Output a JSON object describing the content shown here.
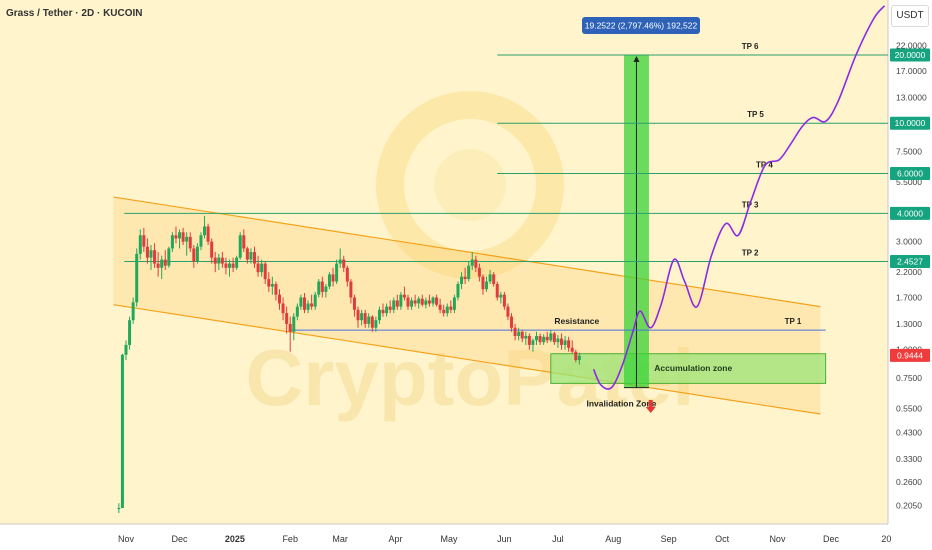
{
  "header": {
    "title": "Grass / Tether · 2D · KUCOIN",
    "currency": "USDT"
  },
  "chart_data": {
    "type": "candlestick",
    "scale": "log",
    "ylim": [
      0.17,
      35
    ],
    "y_ticks": [
      "22.0000",
      "17.0000",
      "13.0000",
      "7.5000",
      "5.5000",
      "3.0000",
      "2.2000",
      "1.7000",
      "1.3000",
      "1.0000",
      "0.7500",
      "0.5500",
      "0.4300",
      "0.3300",
      "0.2600",
      "0.2050"
    ],
    "x_ticks": [
      "Nov",
      "Dec",
      "2025",
      "Feb",
      "Mar",
      "Apr",
      "May",
      "Jun",
      "Jul",
      "Aug",
      "Sep",
      "Oct",
      "Nov",
      "Dec",
      "20"
    ],
    "x_months": [
      {
        "label": "Nov",
        "month": "2024-11"
      },
      {
        "label": "Dec",
        "month": "2024-12"
      },
      {
        "label": "2025",
        "month": "2025-01"
      },
      {
        "label": "Feb",
        "month": "2025-02"
      },
      {
        "label": "Mar",
        "month": "2025-03"
      },
      {
        "label": "Apr",
        "month": "2025-04"
      },
      {
        "label": "May",
        "month": "2025-05"
      },
      {
        "label": "Jun",
        "month": "2025-06"
      },
      {
        "label": "Jul",
        "month": "2025-07"
      },
      {
        "label": "Aug",
        "month": "2025-08"
      },
      {
        "label": "Sep",
        "month": "2025-09"
      },
      {
        "label": "Oct",
        "month": "2025-10"
      },
      {
        "label": "Nov",
        "month": "2025-11"
      },
      {
        "label": "Dec",
        "month": "2025-12"
      },
      {
        "label": "20",
        "month": "2026-01"
      }
    ],
    "price_label": "0.9444",
    "tp_levels": [
      {
        "name": "TP 6",
        "price": 20.0,
        "label": "20.0000"
      },
      {
        "name": "TP 5",
        "price": 10.0,
        "label": "10.0000"
      },
      {
        "name": "TP 4",
        "price": 6.0,
        "label": "6.0000"
      },
      {
        "name": "TP 3",
        "price": 4.0,
        "label": "4.0000"
      },
      {
        "name": "TP 2",
        "price": 2.4527,
        "label": "2.4527"
      },
      {
        "name": "TP 1",
        "price": 1.22,
        "label": ""
      }
    ],
    "annotations": {
      "measure": "19.2522 (2,797.46%) 192,522",
      "resistance": "Resistance",
      "accumulation": "Accumulation zone",
      "invalidation": "Invalidation Zone"
    },
    "watermark": "CryptoPatel",
    "projection": [
      {
        "date": "2025-07-21",
        "price": 0.82
      },
      {
        "date": "2025-07-25",
        "price": 0.7
      },
      {
        "date": "2025-07-31",
        "price": 0.68
      },
      {
        "date": "2025-08-06",
        "price": 0.85
      },
      {
        "date": "2025-08-12",
        "price": 1.2
      },
      {
        "date": "2025-08-16",
        "price": 1.48
      },
      {
        "date": "2025-08-22",
        "price": 1.25
      },
      {
        "date": "2025-08-28",
        "price": 1.6
      },
      {
        "date": "2025-09-04",
        "price": 2.5
      },
      {
        "date": "2025-09-10",
        "price": 2.0
      },
      {
        "date": "2025-09-17",
        "price": 1.55
      },
      {
        "date": "2025-09-25",
        "price": 2.6
      },
      {
        "date": "2025-10-03",
        "price": 3.6
      },
      {
        "date": "2025-10-10",
        "price": 3.2
      },
      {
        "date": "2025-10-17",
        "price": 4.5
      },
      {
        "date": "2025-10-25",
        "price": 6.5
      },
      {
        "date": "2025-11-02",
        "price": 6.9
      },
      {
        "date": "2025-11-08",
        "price": 8.0
      },
      {
        "date": "2025-11-15",
        "price": 9.7
      },
      {
        "date": "2025-11-21",
        "price": 10.6
      },
      {
        "date": "2025-11-28",
        "price": 10.2
      },
      {
        "date": "2025-12-05",
        "price": 12.5
      },
      {
        "date": "2025-12-15",
        "price": 20.0
      },
      {
        "date": "2025-12-25",
        "price": 29.0
      },
      {
        "date": "2025-12-31",
        "price": 33.0
      }
    ],
    "candles": [
      {
        "date": "2024-10-28",
        "o": 0.2,
        "h": 0.21,
        "l": 0.19,
        "c": 0.2
      },
      {
        "date": "2024-10-30",
        "o": 0.2,
        "h": 0.96,
        "l": 0.2,
        "c": 0.95
      },
      {
        "date": "2024-11-01",
        "o": 0.95,
        "h": 1.1,
        "l": 0.9,
        "c": 1.05
      },
      {
        "date": "2024-11-03",
        "o": 1.05,
        "h": 1.4,
        "l": 1.0,
        "c": 1.35
      },
      {
        "date": "2024-11-05",
        "o": 1.35,
        "h": 1.7,
        "l": 1.3,
        "c": 1.62
      },
      {
        "date": "2024-11-07",
        "o": 1.62,
        "h": 2.8,
        "l": 1.55,
        "c": 2.65
      },
      {
        "date": "2024-11-09",
        "o": 2.65,
        "h": 3.4,
        "l": 2.5,
        "c": 3.2
      },
      {
        "date": "2024-11-11",
        "o": 3.2,
        "h": 3.45,
        "l": 2.7,
        "c": 2.85
      },
      {
        "date": "2024-11-13",
        "o": 2.85,
        "h": 3.1,
        "l": 2.4,
        "c": 2.55
      },
      {
        "date": "2024-11-15",
        "o": 2.55,
        "h": 2.9,
        "l": 2.25,
        "c": 2.75
      },
      {
        "date": "2024-11-17",
        "o": 2.75,
        "h": 2.95,
        "l": 2.3,
        "c": 2.4
      },
      {
        "date": "2024-11-19",
        "o": 2.4,
        "h": 2.7,
        "l": 2.1,
        "c": 2.3
      },
      {
        "date": "2024-11-21",
        "o": 2.3,
        "h": 2.6,
        "l": 2.05,
        "c": 2.5
      },
      {
        "date": "2024-11-23",
        "o": 2.5,
        "h": 2.75,
        "l": 2.25,
        "c": 2.35
      },
      {
        "date": "2024-11-25",
        "o": 2.35,
        "h": 2.85,
        "l": 2.3,
        "c": 2.8
      },
      {
        "date": "2024-11-27",
        "o": 2.8,
        "h": 3.3,
        "l": 2.7,
        "c": 3.2
      },
      {
        "date": "2024-11-29",
        "o": 3.2,
        "h": 3.5,
        "l": 2.95,
        "c": 3.1
      },
      {
        "date": "2024-12-01",
        "o": 3.1,
        "h": 3.4,
        "l": 2.8,
        "c": 3.3
      },
      {
        "date": "2024-12-03",
        "o": 3.3,
        "h": 3.45,
        "l": 2.9,
        "c": 3.0
      },
      {
        "date": "2024-12-05",
        "o": 3.0,
        "h": 3.3,
        "l": 2.6,
        "c": 3.15
      },
      {
        "date": "2024-12-07",
        "o": 3.15,
        "h": 3.3,
        "l": 2.7,
        "c": 2.8
      },
      {
        "date": "2024-12-09",
        "o": 2.8,
        "h": 2.9,
        "l": 2.3,
        "c": 2.45
      },
      {
        "date": "2024-12-11",
        "o": 2.45,
        "h": 2.95,
        "l": 2.4,
        "c": 2.85
      },
      {
        "date": "2024-12-13",
        "o": 2.85,
        "h": 3.3,
        "l": 2.75,
        "c": 3.2
      },
      {
        "date": "2024-12-15",
        "o": 3.2,
        "h": 3.9,
        "l": 3.1,
        "c": 3.5
      },
      {
        "date": "2024-12-17",
        "o": 3.5,
        "h": 3.6,
        "l": 2.9,
        "c": 3.0
      },
      {
        "date": "2024-12-19",
        "o": 3.0,
        "h": 3.1,
        "l": 2.4,
        "c": 2.55
      },
      {
        "date": "2024-12-21",
        "o": 2.55,
        "h": 2.7,
        "l": 2.2,
        "c": 2.4
      },
      {
        "date": "2024-12-23",
        "o": 2.4,
        "h": 2.65,
        "l": 2.25,
        "c": 2.55
      },
      {
        "date": "2024-12-25",
        "o": 2.55,
        "h": 2.7,
        "l": 2.3,
        "c": 2.4
      },
      {
        "date": "2024-12-27",
        "o": 2.4,
        "h": 2.55,
        "l": 2.15,
        "c": 2.3
      },
      {
        "date": "2024-12-29",
        "o": 2.3,
        "h": 2.5,
        "l": 2.1,
        "c": 2.4
      },
      {
        "date": "2024-12-31",
        "o": 2.4,
        "h": 2.55,
        "l": 2.2,
        "c": 2.3
      },
      {
        "date": "2025-01-02",
        "o": 2.3,
        "h": 2.6,
        "l": 2.25,
        "c": 2.55
      },
      {
        "date": "2025-01-04",
        "o": 2.55,
        "h": 3.3,
        "l": 2.5,
        "c": 3.2
      },
      {
        "date": "2025-01-06",
        "o": 3.2,
        "h": 3.4,
        "l": 2.7,
        "c": 2.8
      },
      {
        "date": "2025-01-08",
        "o": 2.8,
        "h": 2.85,
        "l": 2.4,
        "c": 2.5
      },
      {
        "date": "2025-01-10",
        "o": 2.5,
        "h": 2.8,
        "l": 2.4,
        "c": 2.7
      },
      {
        "date": "2025-01-12",
        "o": 2.7,
        "h": 2.85,
        "l": 2.3,
        "c": 2.4
      },
      {
        "date": "2025-01-14",
        "o": 2.4,
        "h": 2.6,
        "l": 2.1,
        "c": 2.2
      },
      {
        "date": "2025-01-16",
        "o": 2.2,
        "h": 2.5,
        "l": 2.1,
        "c": 2.4
      },
      {
        "date": "2025-01-18",
        "o": 2.4,
        "h": 2.45,
        "l": 1.95,
        "c": 2.05
      },
      {
        "date": "2025-01-20",
        "o": 2.05,
        "h": 2.2,
        "l": 1.8,
        "c": 1.9
      },
      {
        "date": "2025-01-22",
        "o": 1.9,
        "h": 2.1,
        "l": 1.75,
        "c": 1.95
      },
      {
        "date": "2025-01-24",
        "o": 1.95,
        "h": 2.0,
        "l": 1.65,
        "c": 1.75
      },
      {
        "date": "2025-01-26",
        "o": 1.75,
        "h": 1.85,
        "l": 1.5,
        "c": 1.6
      },
      {
        "date": "2025-01-28",
        "o": 1.6,
        "h": 1.7,
        "l": 1.35,
        "c": 1.45
      },
      {
        "date": "2025-01-30",
        "o": 1.45,
        "h": 1.55,
        "l": 1.18,
        "c": 1.3
      },
      {
        "date": "2025-02-01",
        "o": 1.3,
        "h": 1.4,
        "l": 0.98,
        "c": 1.2
      },
      {
        "date": "2025-02-03",
        "o": 1.2,
        "h": 1.45,
        "l": 1.1,
        "c": 1.4
      },
      {
        "date": "2025-02-05",
        "o": 1.4,
        "h": 1.6,
        "l": 1.35,
        "c": 1.55
      },
      {
        "date": "2025-02-07",
        "o": 1.55,
        "h": 1.75,
        "l": 1.5,
        "c": 1.7
      },
      {
        "date": "2025-02-09",
        "o": 1.7,
        "h": 1.78,
        "l": 1.45,
        "c": 1.5
      },
      {
        "date": "2025-02-11",
        "o": 1.5,
        "h": 1.65,
        "l": 1.45,
        "c": 1.6
      },
      {
        "date": "2025-02-13",
        "o": 1.6,
        "h": 1.75,
        "l": 1.5,
        "c": 1.55
      },
      {
        "date": "2025-02-15",
        "o": 1.55,
        "h": 1.8,
        "l": 1.5,
        "c": 1.75
      },
      {
        "date": "2025-02-17",
        "o": 1.75,
        "h": 2.05,
        "l": 1.7,
        "c": 2.0
      },
      {
        "date": "2025-02-19",
        "o": 2.0,
        "h": 2.1,
        "l": 1.7,
        "c": 1.8
      },
      {
        "date": "2025-02-21",
        "o": 1.8,
        "h": 1.95,
        "l": 1.7,
        "c": 1.9
      },
      {
        "date": "2025-02-23",
        "o": 1.9,
        "h": 2.2,
        "l": 1.85,
        "c": 2.15
      },
      {
        "date": "2025-02-25",
        "o": 2.15,
        "h": 2.3,
        "l": 1.9,
        "c": 2.0
      },
      {
        "date": "2025-02-27",
        "o": 2.0,
        "h": 2.5,
        "l": 1.95,
        "c": 2.4
      },
      {
        "date": "2025-03-01",
        "o": 2.4,
        "h": 2.8,
        "l": 2.3,
        "c": 2.5
      },
      {
        "date": "2025-03-03",
        "o": 2.5,
        "h": 2.6,
        "l": 2.2,
        "c": 2.3
      },
      {
        "date": "2025-03-05",
        "o": 2.3,
        "h": 2.35,
        "l": 1.9,
        "c": 2.0
      },
      {
        "date": "2025-03-07",
        "o": 2.0,
        "h": 2.05,
        "l": 1.6,
        "c": 1.7
      },
      {
        "date": "2025-03-09",
        "o": 1.7,
        "h": 1.75,
        "l": 1.4,
        "c": 1.5
      },
      {
        "date": "2025-03-11",
        "o": 1.5,
        "h": 1.55,
        "l": 1.25,
        "c": 1.35
      },
      {
        "date": "2025-03-13",
        "o": 1.35,
        "h": 1.5,
        "l": 1.28,
        "c": 1.45
      },
      {
        "date": "2025-03-15",
        "o": 1.45,
        "h": 1.5,
        "l": 1.25,
        "c": 1.3
      },
      {
        "date": "2025-03-17",
        "o": 1.3,
        "h": 1.45,
        "l": 1.25,
        "c": 1.4
      },
      {
        "date": "2025-03-19",
        "o": 1.4,
        "h": 1.42,
        "l": 1.2,
        "c": 1.25
      },
      {
        "date": "2025-03-21",
        "o": 1.25,
        "h": 1.4,
        "l": 1.2,
        "c": 1.35
      },
      {
        "date": "2025-03-23",
        "o": 1.35,
        "h": 1.55,
        "l": 1.3,
        "c": 1.5
      },
      {
        "date": "2025-03-25",
        "o": 1.5,
        "h": 1.6,
        "l": 1.4,
        "c": 1.45
      },
      {
        "date": "2025-03-27",
        "o": 1.45,
        "h": 1.6,
        "l": 1.4,
        "c": 1.55
      },
      {
        "date": "2025-03-29",
        "o": 1.55,
        "h": 1.65,
        "l": 1.45,
        "c": 1.5
      },
      {
        "date": "2025-03-31",
        "o": 1.5,
        "h": 1.7,
        "l": 1.45,
        "c": 1.65
      },
      {
        "date": "2025-04-02",
        "o": 1.65,
        "h": 1.75,
        "l": 1.5,
        "c": 1.55
      },
      {
        "date": "2025-04-04",
        "o": 1.55,
        "h": 1.8,
        "l": 1.5,
        "c": 1.75
      },
      {
        "date": "2025-04-06",
        "o": 1.75,
        "h": 1.9,
        "l": 1.65,
        "c": 1.7
      },
      {
        "date": "2025-04-08",
        "o": 1.7,
        "h": 1.75,
        "l": 1.5,
        "c": 1.55
      },
      {
        "date": "2025-04-10",
        "o": 1.55,
        "h": 1.7,
        "l": 1.5,
        "c": 1.65
      },
      {
        "date": "2025-04-12",
        "o": 1.65,
        "h": 1.75,
        "l": 1.55,
        "c": 1.6
      },
      {
        "date": "2025-04-14",
        "o": 1.6,
        "h": 1.72,
        "l": 1.52,
        "c": 1.68
      },
      {
        "date": "2025-04-16",
        "o": 1.68,
        "h": 1.75,
        "l": 1.55,
        "c": 1.58
      },
      {
        "date": "2025-04-18",
        "o": 1.58,
        "h": 1.7,
        "l": 1.52,
        "c": 1.65
      },
      {
        "date": "2025-04-20",
        "o": 1.65,
        "h": 1.75,
        "l": 1.55,
        "c": 1.6
      },
      {
        "date": "2025-04-22",
        "o": 1.6,
        "h": 1.72,
        "l": 1.55,
        "c": 1.7
      },
      {
        "date": "2025-04-24",
        "o": 1.7,
        "h": 1.75,
        "l": 1.55,
        "c": 1.58
      },
      {
        "date": "2025-04-26",
        "o": 1.58,
        "h": 1.68,
        "l": 1.45,
        "c": 1.5
      },
      {
        "date": "2025-04-28",
        "o": 1.5,
        "h": 1.58,
        "l": 1.4,
        "c": 1.45
      },
      {
        "date": "2025-04-30",
        "o": 1.45,
        "h": 1.6,
        "l": 1.4,
        "c": 1.55
      },
      {
        "date": "2025-05-02",
        "o": 1.55,
        "h": 1.65,
        "l": 1.45,
        "c": 1.5
      },
      {
        "date": "2025-05-04",
        "o": 1.5,
        "h": 1.75,
        "l": 1.45,
        "c": 1.7
      },
      {
        "date": "2025-05-06",
        "o": 1.7,
        "h": 2.0,
        "l": 1.65,
        "c": 1.95
      },
      {
        "date": "2025-05-08",
        "o": 1.95,
        "h": 2.2,
        "l": 1.85,
        "c": 2.1
      },
      {
        "date": "2025-05-10",
        "o": 2.1,
        "h": 2.3,
        "l": 1.95,
        "c": 2.05
      },
      {
        "date": "2025-05-12",
        "o": 2.05,
        "h": 2.45,
        "l": 2.0,
        "c": 2.35
      },
      {
        "date": "2025-05-14",
        "o": 2.35,
        "h": 2.7,
        "l": 2.25,
        "c": 2.5
      },
      {
        "date": "2025-05-16",
        "o": 2.5,
        "h": 2.6,
        "l": 2.2,
        "c": 2.3
      },
      {
        "date": "2025-05-18",
        "o": 2.3,
        "h": 2.4,
        "l": 2.0,
        "c": 2.1
      },
      {
        "date": "2025-05-20",
        "o": 2.1,
        "h": 2.15,
        "l": 1.75,
        "c": 1.85
      },
      {
        "date": "2025-05-22",
        "o": 1.85,
        "h": 2.1,
        "l": 1.8,
        "c": 2.0
      },
      {
        "date": "2025-05-24",
        "o": 2.0,
        "h": 2.25,
        "l": 1.95,
        "c": 2.15
      },
      {
        "date": "2025-05-26",
        "o": 2.15,
        "h": 2.2,
        "l": 1.9,
        "c": 1.95
      },
      {
        "date": "2025-05-28",
        "o": 1.95,
        "h": 2.0,
        "l": 1.65,
        "c": 1.7
      },
      {
        "date": "2025-05-30",
        "o": 1.7,
        "h": 1.8,
        "l": 1.6,
        "c": 1.75
      },
      {
        "date": "2025-06-01",
        "o": 1.75,
        "h": 1.8,
        "l": 1.5,
        "c": 1.55
      },
      {
        "date": "2025-06-03",
        "o": 1.55,
        "h": 1.6,
        "l": 1.35,
        "c": 1.4
      },
      {
        "date": "2025-06-05",
        "o": 1.4,
        "h": 1.45,
        "l": 1.2,
        "c": 1.25
      },
      {
        "date": "2025-06-07",
        "o": 1.25,
        "h": 1.3,
        "l": 1.1,
        "c": 1.15
      },
      {
        "date": "2025-06-09",
        "o": 1.15,
        "h": 1.25,
        "l": 1.1,
        "c": 1.2
      },
      {
        "date": "2025-06-11",
        "o": 1.2,
        "h": 1.22,
        "l": 1.08,
        "c": 1.12
      },
      {
        "date": "2025-06-13",
        "o": 1.12,
        "h": 1.2,
        "l": 1.05,
        "c": 1.15
      },
      {
        "date": "2025-06-15",
        "o": 1.15,
        "h": 1.18,
        "l": 1.0,
        "c": 1.05
      },
      {
        "date": "2025-06-17",
        "o": 1.05,
        "h": 1.12,
        "l": 0.98,
        "c": 1.1
      },
      {
        "date": "2025-06-19",
        "o": 1.1,
        "h": 1.2,
        "l": 1.05,
        "c": 1.15
      },
      {
        "date": "2025-06-21",
        "o": 1.15,
        "h": 1.18,
        "l": 1.05,
        "c": 1.08
      },
      {
        "date": "2025-06-23",
        "o": 1.08,
        "h": 1.17,
        "l": 1.05,
        "c": 1.14
      },
      {
        "date": "2025-06-25",
        "o": 1.14,
        "h": 1.2,
        "l": 1.07,
        "c": 1.1
      },
      {
        "date": "2025-06-27",
        "o": 1.1,
        "h": 1.22,
        "l": 1.08,
        "c": 1.18
      },
      {
        "date": "2025-06-29",
        "o": 1.18,
        "h": 1.2,
        "l": 1.05,
        "c": 1.08
      },
      {
        "date": "2025-07-01",
        "o": 1.08,
        "h": 1.16,
        "l": 1.02,
        "c": 1.12
      },
      {
        "date": "2025-07-03",
        "o": 1.12,
        "h": 1.18,
        "l": 1.0,
        "c": 1.05
      },
      {
        "date": "2025-07-05",
        "o": 1.05,
        "h": 1.15,
        "l": 1.0,
        "c": 1.1
      },
      {
        "date": "2025-07-07",
        "o": 1.1,
        "h": 1.14,
        "l": 0.98,
        "c": 1.02
      },
      {
        "date": "2025-07-09",
        "o": 1.02,
        "h": 1.1,
        "l": 0.96,
        "c": 0.98
      },
      {
        "date": "2025-07-11",
        "o": 0.98,
        "h": 1.0,
        "l": 0.88,
        "c": 0.9
      },
      {
        "date": "2025-07-13",
        "o": 0.9,
        "h": 0.97,
        "l": 0.86,
        "c": 0.94
      }
    ]
  }
}
